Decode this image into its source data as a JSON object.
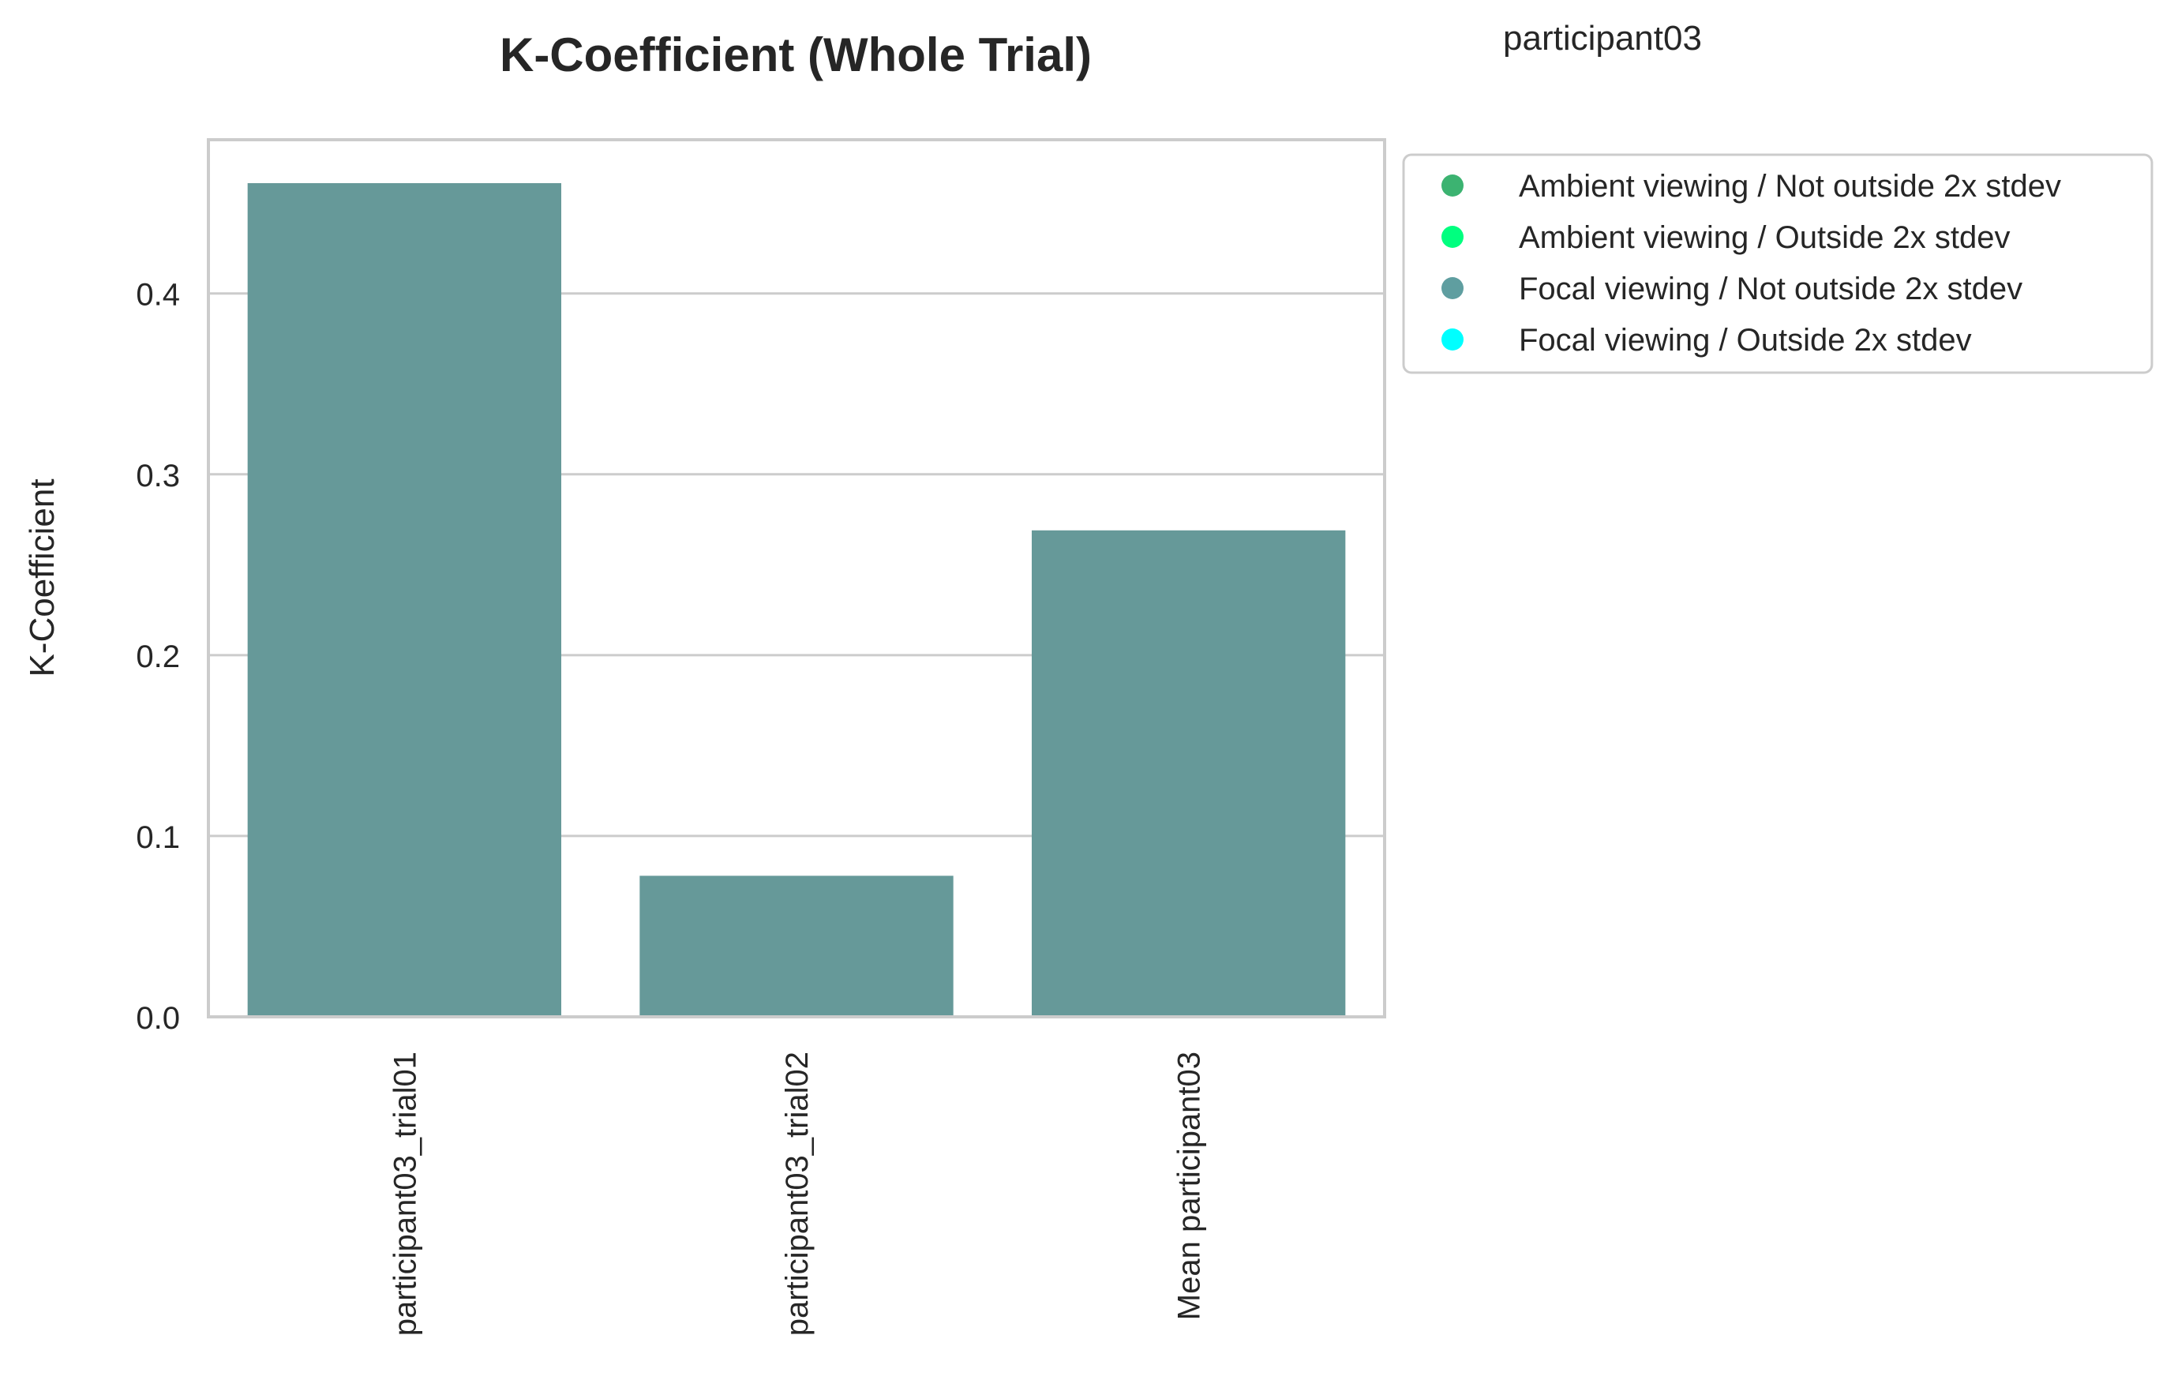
{
  "chart_data": {
    "type": "bar",
    "title": "K-Coefficient (Whole Trial)",
    "subtitle": "participant03",
    "xlabel": "",
    "ylabel": "K-Coefficient",
    "categories": [
      "participant03_trial01",
      "participant03_trial02",
      "Mean participant03"
    ],
    "series": [
      {
        "values": [
          0.461,
          0.078,
          0.269
        ],
        "legend_index": [
          2,
          2,
          2
        ]
      }
    ],
    "ylim": [
      0,
      0.485
    ],
    "yticks": [
      0.0,
      0.1,
      0.2,
      0.3,
      0.4
    ],
    "ytick_labels": [
      "0.0",
      "0.1",
      "0.2",
      "0.3",
      "0.4"
    ],
    "grid": true,
    "legend_position": "outside-top-right",
    "legend": [
      {
        "label": "Ambient viewing / Not outside 2x stdev",
        "color": "#3cb371"
      },
      {
        "label": "Ambient viewing / Outside 2x stdev",
        "color": "#00ff7f"
      },
      {
        "label": "Focal viewing / Not outside 2x stdev",
        "color": "#5f9ea0"
      },
      {
        "label": "Focal viewing / Outside 2x stdev",
        "color": "#00ffff"
      }
    ],
    "bar_color": "#669999"
  }
}
